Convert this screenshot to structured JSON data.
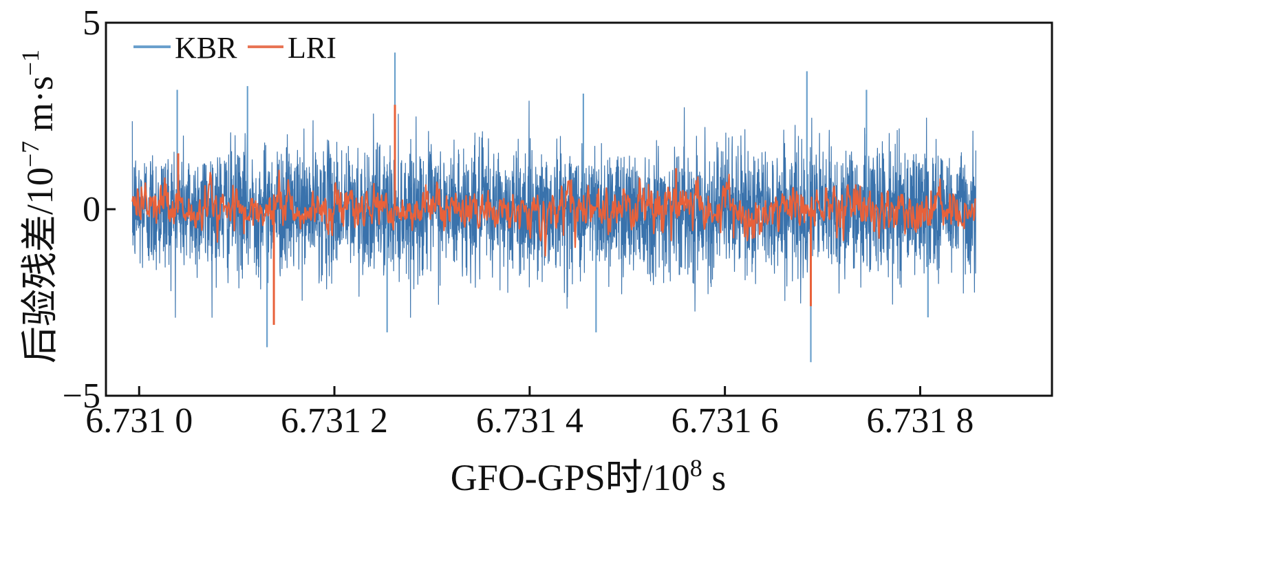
{
  "chart_data": {
    "type": "line",
    "title": "",
    "xlabel": "GFO-GPS时/10⁸ s",
    "ylabel": "后验残差/10⁻⁷ m·s⁻¹",
    "xlabel_parts": {
      "main": "GFO-GPS时/10",
      "exp": "8",
      "unit": " s"
    },
    "ylabel_parts": {
      "main": "后验残差/10",
      "exp": "−7",
      "unit": " m·s",
      "unit_exp": "−1"
    },
    "xlim": [
      6.730966,
      6.731935
    ],
    "ylim": [
      -5,
      5
    ],
    "x_ticks": [
      6.731,
      6.7312,
      6.7314,
      6.7316,
      6.7318
    ],
    "x_tick_labels": [
      "6.731 0",
      "6.731 2",
      "6.731 4",
      "6.731 6",
      "6.731 8"
    ],
    "y_ticks": [
      -5,
      0,
      5
    ],
    "y_tick_labels": [
      "−5",
      "0",
      "5"
    ],
    "x_range_data": [
      6.730993,
      6.731857
    ],
    "grid": false,
    "legend_position": "top-left",
    "series": [
      {
        "name": "KBR",
        "color": "#2e6aa8",
        "legend_color": "#6aa0cc",
        "noise_amplitude": 0.85,
        "spikes": [
          {
            "x": 6.731039,
            "y": 3.2
          },
          {
            "x": 6.731111,
            "y": 3.3
          },
          {
            "x": 6.731131,
            "y": -3.7
          },
          {
            "x": 6.731262,
            "y": 4.2
          },
          {
            "x": 6.731254,
            "y": -3.3
          },
          {
            "x": 6.731455,
            "y": 3.1
          },
          {
            "x": 6.731468,
            "y": -3.3
          },
          {
            "x": 6.731684,
            "y": 3.7
          },
          {
            "x": 6.731688,
            "y": -4.1
          },
          {
            "x": 6.731745,
            "y": 3.2
          },
          {
            "x": 6.731808,
            "y": -2.9
          }
        ]
      },
      {
        "name": "LRI",
        "color": "#e8613a",
        "legend_color": "#e87555",
        "noise_amplitude": 0.35,
        "spikes": [
          {
            "x": 6.731262,
            "y": 2.8
          },
          {
            "x": 6.731138,
            "y": -3.1
          },
          {
            "x": 6.731688,
            "y": -2.6
          },
          {
            "x": 6.73104,
            "y": 1.5
          },
          {
            "x": 6.73155,
            "y": 1.1
          }
        ]
      }
    ]
  }
}
